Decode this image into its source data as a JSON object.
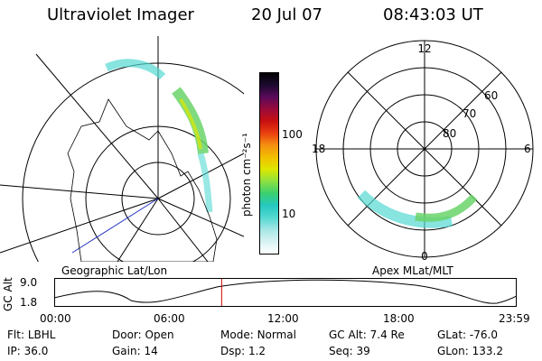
{
  "header": {
    "title": "Ultraviolet Imager",
    "date": "20 Jul 07",
    "time": "08:43:03 UT"
  },
  "colorbar": {
    "label": "photon cm⁻²s⁻¹",
    "ticks": [
      "100",
      "10"
    ],
    "colors": [
      "#ffffff",
      "#d8f2f2",
      "#a6e6e6",
      "#54d8d2",
      "#25c8c0",
      "#3ad070",
      "#8ce040",
      "#dce800",
      "#f2c000",
      "#f49010",
      "#ea4010",
      "#c81010",
      "#9a0a3a",
      "#5a0a5a",
      "#1c0a30",
      "#000000"
    ]
  },
  "left_map": {
    "caption": "Geographic Lat/Lon"
  },
  "right_map": {
    "caption": "Apex MLat/MLT",
    "mlt_labels": [
      "12",
      "18",
      "6",
      "0"
    ],
    "mlat_labels": [
      "60",
      "70",
      "80"
    ]
  },
  "alt_plot": {
    "axis_label": "GC Alt",
    "y_ticks": [
      "9.0",
      "1.8"
    ],
    "x_ticks": [
      "00:00",
      "06:00",
      "12:00",
      "18:00",
      "23:59"
    ],
    "current_time_fraction": 0.362,
    "marker_color": "#d00000"
  },
  "status": {
    "row1": [
      {
        "key": "Flt:",
        "value": "LBHL"
      },
      {
        "key": "Door:",
        "value": "Open"
      },
      {
        "key": "Mode:",
        "value": "Normal"
      },
      {
        "key": "GC Alt:",
        "value": "7.4 Re"
      },
      {
        "key": "GLat:",
        "value": "-76.0"
      }
    ],
    "row2": [
      {
        "key": "IP:",
        "value": "36.0"
      },
      {
        "key": "Gain:",
        "value": "14"
      },
      {
        "key": "Dsp:",
        "value": "1.2"
      },
      {
        "key": "Seq:",
        "value": "39"
      },
      {
        "key": "GLon:",
        "value": "133.2"
      }
    ]
  }
}
